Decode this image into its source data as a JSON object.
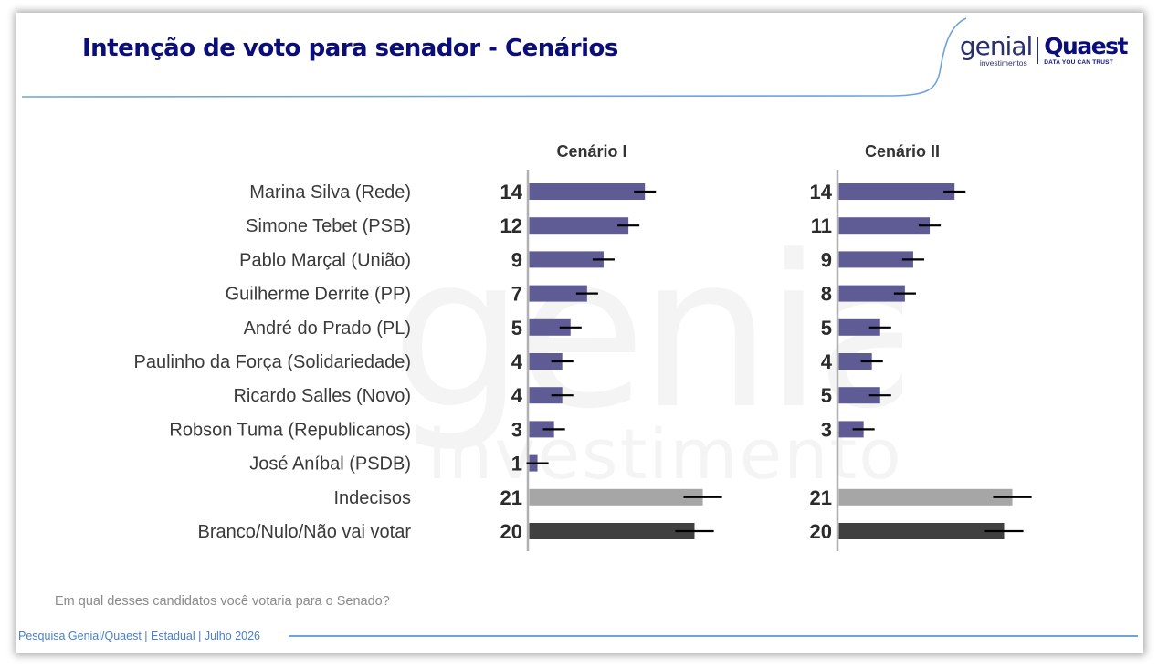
{
  "header": {
    "title": "Intenção de voto para senador - Cenários"
  },
  "logo": {
    "genial_word": "genial",
    "genial_sub": "investimentos",
    "quaest_word": "Quaest",
    "quaest_sub": "DATA YOU CAN TRUST"
  },
  "watermark": {
    "word": "genial",
    "sub": "investimentos"
  },
  "question": "Em qual desses candidatos você votaria para o Senado?",
  "footer": "Pesquisa Genial/Quaest | Estadual | Julho 2026",
  "colors": {
    "title": "#0b0e78",
    "candidate_bar": "#5f5b94",
    "undecided_bar": "#a6a6a6",
    "blank_bar": "#404040",
    "error_bar": "#000000",
    "accent_line": "#6fa3de"
  },
  "chart_data": {
    "type": "bar",
    "orientation": "horizontal",
    "categories": [
      "Marina Silva (Rede)",
      "Simone Tebet (PSB)",
      "Pablo Marçal (União)",
      "Guilherme Derrite (PP)",
      "André do Prado (PL)",
      "Paulinho da Força (Solidariedade)",
      "Ricardo Salles (Novo)",
      "Robson Tuma (Republicanos)",
      "José Aníbal (PSDB)",
      "Indecisos",
      "Branco/Nulo/Não vai votar"
    ],
    "series": [
      {
        "name": "Cenário I",
        "values": [
          14,
          12,
          9,
          7,
          5,
          4,
          4,
          3,
          1,
          21,
          20
        ],
        "error_margin": [
          1,
          1,
          1,
          1,
          1,
          1,
          1,
          1,
          1,
          2,
          2
        ]
      },
      {
        "name": "Cenário II",
        "values": [
          14,
          11,
          9,
          8,
          5,
          4,
          5,
          3,
          null,
          21,
          20
        ],
        "error_margin": [
          1,
          1,
          1,
          1,
          1,
          1,
          1,
          1,
          null,
          2,
          2
        ]
      }
    ],
    "bar_categories": [
      "candidate",
      "candidate",
      "candidate",
      "candidate",
      "candidate",
      "candidate",
      "candidate",
      "candidate",
      "candidate",
      "undecided",
      "blank"
    ],
    "xlim": [
      0,
      25
    ],
    "grid": false,
    "legend": "none"
  }
}
